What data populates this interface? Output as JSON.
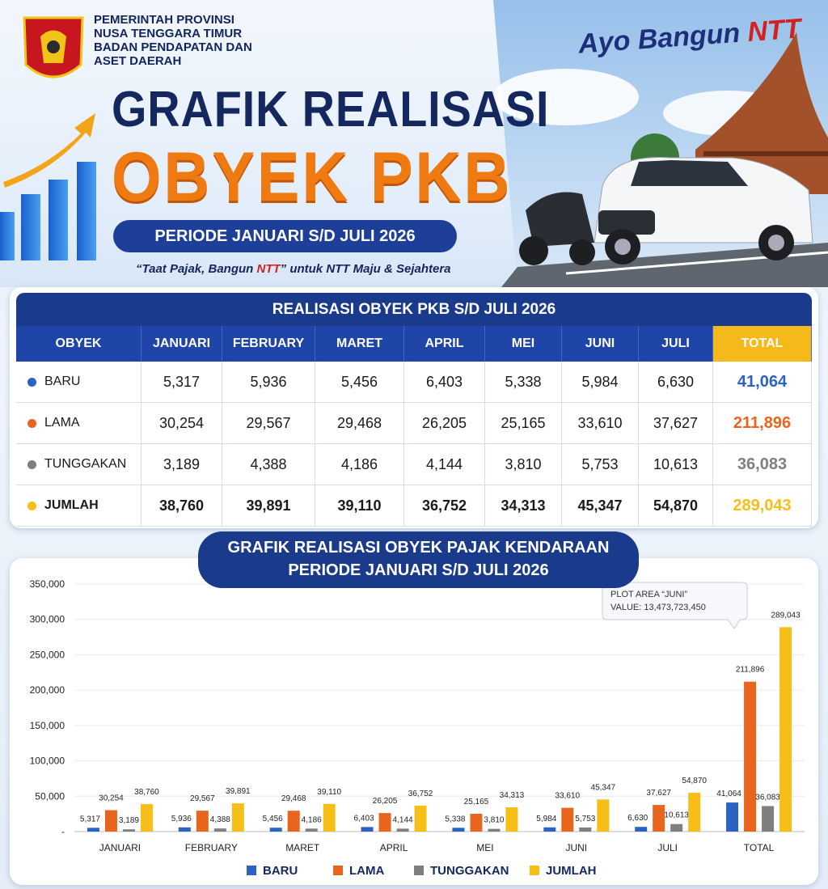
{
  "header": {
    "org": [
      "PEMERINTAH PROVINSI",
      "NUSA TENGGARA TIMUR",
      "BADAN PENDAPATAN DAN",
      "ASET DAERAH"
    ],
    "slogan": "Ayo Bangun",
    "slogan_em": "NTT",
    "title_1": "GRAFIK REALISASI",
    "title_2": "OBYEK PKB",
    "period": "PERIODE JANUARI S/D JULI 2026",
    "tagline_start": "“Taat Pajak, Bangun ",
    "tagline_em": "NTT",
    "tagline_end": "” untuk NTT Maju & Sejahtera"
  },
  "table": {
    "title": "REALISASI OBYEK PKB S/D JULI 2026",
    "columns": [
      "OBYEK",
      "JANUARI",
      "FEBRUARY",
      "MARET",
      "APRIL",
      "MEI",
      "JUNI",
      "JULI",
      "TOTAL"
    ],
    "rows": [
      {
        "color": "#2a63c2",
        "cells": [
          "BARU",
          "5,317",
          "5,936",
          "5,456",
          "6,403",
          "5,338",
          "5,984",
          "6,630",
          "41,064"
        ]
      },
      {
        "color": "#e8651e",
        "cells": [
          "LAMA",
          "30,254",
          "29,567",
          "29,468",
          "26,205",
          "25,165",
          "33,610",
          "37,627",
          "211,896"
        ]
      },
      {
        "color": "#7f7f7f",
        "cells": [
          "TUNGGAKAN",
          "3,189",
          "4,388",
          "4,186",
          "4,144",
          "3,810",
          "5,753",
          "10,613",
          "36,083"
        ]
      },
      {
        "color": "#f5bf17",
        "cells": [
          "JUMLAH",
          "38,760",
          "39,891",
          "39,110",
          "36,752",
          "34,313",
          "45,347",
          "54,870",
          "289,043"
        ]
      }
    ]
  },
  "chart_data": {
    "type": "bar",
    "title": [
      "GRAFIK REALISASI OBYEK PAJAK KENDARAAN",
      "PERIODE JANUARI S/D JULI 2026"
    ],
    "categories": [
      "JANUARI",
      "FEBRUARY",
      "MARET",
      "APRIL",
      "MEI",
      "JUNI",
      "JULI",
      "TOTAL"
    ],
    "series": [
      {
        "name": "BARU",
        "color": "#2a63c2",
        "values": [
          5317,
          5936,
          5456,
          6403,
          5338,
          5984,
          6630,
          41064
        ],
        "value_labels": [
          "5,317",
          "5,936",
          "5,456",
          "6,403",
          "5,338",
          "5,984",
          "6,630",
          "41,064"
        ]
      },
      {
        "name": "LAMA",
        "color": "#e8651e",
        "values": [
          30254,
          29567,
          29468,
          26205,
          25165,
          33610,
          37627,
          211896
        ],
        "value_labels": [
          "30,254",
          "29,567",
          "29,468",
          "26,205",
          "25,165",
          "33,610",
          "37,627",
          "211,896"
        ]
      },
      {
        "name": "TUNGGAKAN",
        "color": "#7f7f7f",
        "values": [
          3189,
          4388,
          4186,
          4144,
          3810,
          5753,
          10613,
          36083
        ],
        "value_labels": [
          "3,189",
          "4,388",
          "4,186",
          "4,144",
          "3,810",
          "5,753",
          "10,613",
          "36,083"
        ]
      },
      {
        "name": "JUMLAH",
        "color": "#f5bf17",
        "values": [
          38760,
          39891,
          39110,
          36752,
          34313,
          45347,
          54870,
          289043
        ],
        "value_labels": [
          "38,760",
          "39,891",
          "39,110",
          "36,752",
          "34,313",
          "45,347",
          "54,870",
          "289,043"
        ]
      }
    ],
    "ylim": [
      0,
      350000
    ],
    "yticks": [
      {
        "value": 0,
        "label": "-"
      },
      {
        "value": 50000,
        "label": "50,000"
      },
      {
        "value": 100000,
        "label": "100,000"
      },
      {
        "value": 150000,
        "label": "150,000"
      },
      {
        "value": 200000,
        "label": "200,000"
      },
      {
        "value": 250000,
        "label": "250,000"
      },
      {
        "value": 300000,
        "label": "300,000"
      },
      {
        "value": 350000,
        "label": "350,000"
      }
    ],
    "grid": true,
    "legend": "bottom",
    "annotation": [
      "PLOT AREA “JUNI”",
      "VALUE: 13,473,723,450"
    ]
  }
}
